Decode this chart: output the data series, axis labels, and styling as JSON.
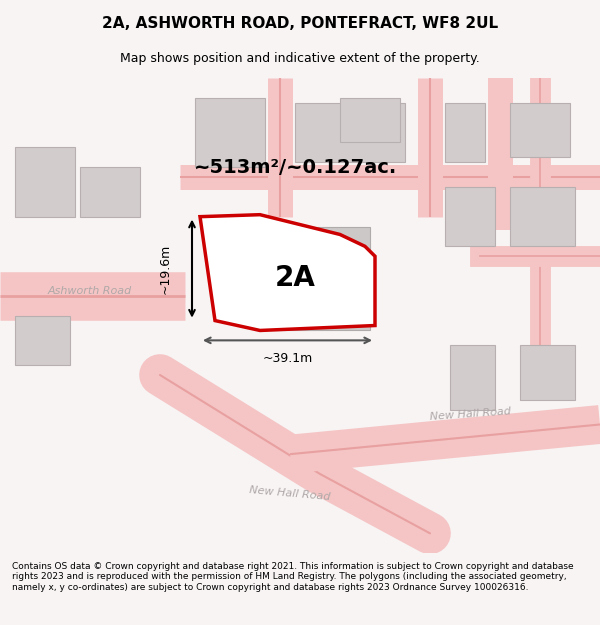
{
  "title": "2A, ASHWORTH ROAD, PONTEFRACT, WF8 2UL",
  "subtitle": "Map shows position and indicative extent of the property.",
  "footer": "Contains OS data © Crown copyright and database right 2021. This information is subject to Crown copyright and database rights 2023 and is reproduced with the permission of HM Land Registry. The polygons (including the associated geometry, namely x, y co-ordinates) are subject to Crown copyright and database rights 2023 Ordnance Survey 100026316.",
  "area_label": "~513m²/~0.127ac.",
  "plot_label": "2A",
  "width_label": "~39.1m",
  "height_label": "~19.6m",
  "bg_color": "#f5f0f0",
  "map_bg": "#f9f4f4",
  "road_color_light": "#f5b8b8",
  "road_color_dark": "#e87070",
  "building_color": "#d8d0d0",
  "building_border": "#b0a8a8",
  "plot_fill": "#ffffff",
  "plot_border": "#cc0000",
  "road_label_color": "#aaaaaa",
  "title_fontsize": 11,
  "subtitle_fontsize": 9,
  "footer_fontsize": 6.5
}
